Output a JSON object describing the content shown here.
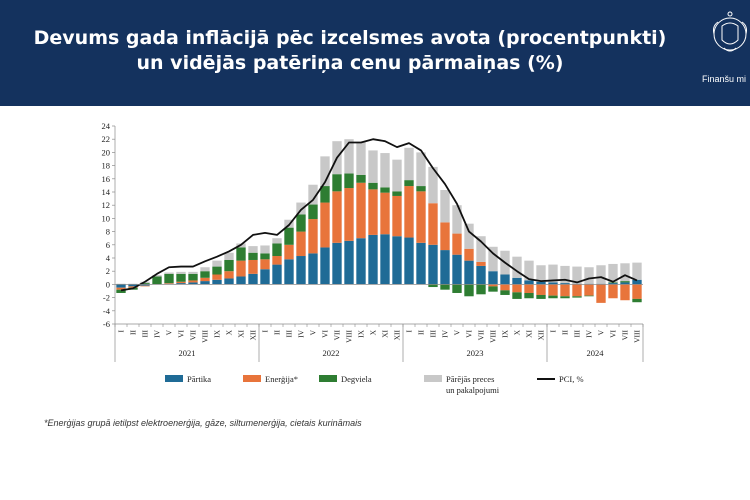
{
  "header": {
    "title_line1": "Devums gada inflācijā pēc izcelsmes avota (procentpunkti)",
    "title_line2": "un vidējās patēriņa cenu pārmaiņas (%)",
    "org_name": "Finanšu mi",
    "background": "#14325e"
  },
  "footnote": "*Enerģijas grupā ietilpst elektroenerģija, gāze, siltumenerģija, cietais kurināmais",
  "chart_data": {
    "type": "bar",
    "stacked": true,
    "title": "",
    "xlabel": "",
    "ylabel": "",
    "ylim": [
      -6,
      24
    ],
    "yticks": [
      -6,
      -4,
      -2,
      0,
      2,
      4,
      6,
      8,
      10,
      12,
      14,
      16,
      18,
      20,
      22,
      24
    ],
    "grid": false,
    "legend_position": "bottom",
    "years": [
      "2021",
      "2022",
      "2023",
      "2024"
    ],
    "categories": [
      "I",
      "II",
      "III",
      "IV",
      "V",
      "VI",
      "VII",
      "VIII",
      "IX",
      "X",
      "XI",
      "XII",
      "I",
      "II",
      "III",
      "IV",
      "V",
      "VI",
      "VII",
      "VIII",
      "IX",
      "X",
      "XI",
      "XII",
      "I",
      "II",
      "III",
      "IV",
      "V",
      "VI",
      "VII",
      "VIII",
      "IX",
      "X",
      "XI",
      "XII",
      "I",
      "II",
      "III",
      "IV",
      "V",
      "VI",
      "VII",
      "VIII"
    ],
    "series": [
      {
        "name": "Pārtika",
        "color": "#1f6b96",
        "kind": "bar",
        "values": [
          -0.5,
          -0.3,
          -0.2,
          0.0,
          0.1,
          0.2,
          0.3,
          0.5,
          0.7,
          0.9,
          1.2,
          1.6,
          2.3,
          3.0,
          3.8,
          4.3,
          4.7,
          5.6,
          6.3,
          6.6,
          7.0,
          7.5,
          7.6,
          7.3,
          7.1,
          6.3,
          6.0,
          5.2,
          4.5,
          3.6,
          2.8,
          2.0,
          1.5,
          1.0,
          0.6,
          0.4,
          0.3,
          0.2,
          0.1,
          0.1,
          0.1,
          0.2,
          0.3,
          0.7
        ]
      },
      {
        "name": "Enerģija*",
        "color": "#e8743b",
        "kind": "bar",
        "values": [
          -0.3,
          -0.2,
          -0.1,
          0.0,
          0.1,
          0.2,
          0.3,
          0.5,
          0.8,
          1.1,
          2.4,
          2.1,
          1.5,
          1.3,
          2.2,
          3.7,
          5.2,
          6.8,
          7.8,
          8.0,
          8.4,
          6.9,
          6.3,
          6.1,
          7.8,
          7.8,
          6.3,
          4.2,
          3.2,
          1.8,
          0.6,
          -0.3,
          -0.9,
          -1.2,
          -1.3,
          -1.6,
          -1.7,
          -1.8,
          -1.8,
          -1.7,
          -2.8,
          -2.1,
          -2.4,
          -2.2
        ]
      },
      {
        "name": "Degviela",
        "color": "#2e7d32",
        "kind": "bar",
        "values": [
          -0.5,
          -0.3,
          0.2,
          1.2,
          1.4,
          1.2,
          1.0,
          1.0,
          1.2,
          1.7,
          2.0,
          1.1,
          0.9,
          1.9,
          2.6,
          2.6,
          2.2,
          2.5,
          2.6,
          2.2,
          1.2,
          1.0,
          0.8,
          0.7,
          0.9,
          0.8,
          -0.4,
          -0.8,
          -1.3,
          -1.8,
          -1.5,
          -0.8,
          -0.7,
          -1.0,
          -0.8,
          -0.6,
          -0.4,
          -0.3,
          -0.2,
          -0.1,
          0.0,
          0.1,
          0.2,
          -0.5
        ]
      },
      {
        "name": "Pārējās preces un pakalpojumi",
        "color": "#c8c8c8",
        "kind": "bar",
        "values": [
          0.1,
          0.1,
          0.2,
          0.2,
          0.2,
          0.3,
          0.3,
          0.6,
          0.9,
          1.1,
          0.6,
          1.0,
          1.2,
          0.8,
          1.2,
          1.8,
          3.0,
          4.5,
          5.0,
          5.2,
          5.0,
          4.9,
          5.2,
          4.8,
          4.9,
          5.1,
          5.5,
          4.9,
          4.3,
          3.8,
          3.9,
          3.7,
          3.6,
          3.2,
          3.0,
          2.5,
          2.7,
          2.6,
          2.6,
          2.5,
          2.8,
          2.8,
          2.7,
          2.6
        ]
      },
      {
        "name": "PCI, %",
        "color": "#111111",
        "kind": "line",
        "values": [
          -0.9,
          -0.6,
          0.4,
          1.6,
          2.6,
          2.7,
          2.7,
          3.5,
          4.2,
          5.0,
          6.0,
          7.5,
          7.8,
          7.5,
          9.0,
          11.3,
          12.8,
          15.5,
          19.2,
          21.5,
          21.5,
          22.0,
          21.7,
          20.8,
          21.4,
          20.3,
          17.6,
          15.2,
          12.2,
          8.0,
          6.5,
          4.7,
          3.3,
          2.0,
          0.8,
          0.5,
          0.6,
          0.7,
          0.3,
          0.9,
          1.1,
          0.4,
          1.4,
          0.6
        ]
      }
    ]
  }
}
